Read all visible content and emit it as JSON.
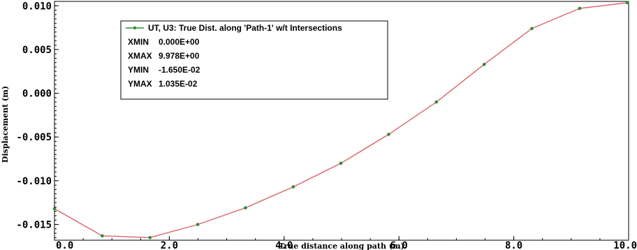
{
  "chart_data": {
    "type": "line",
    "title": "",
    "xlabel": "True distance along path (m)",
    "ylabel": "Displacement (m)",
    "xlim": [
      0,
      10
    ],
    "ylim": [
      -0.0168,
      0.0105
    ],
    "x_ticks": [
      0.0,
      2.0,
      4.0,
      6.0,
      8.0,
      10.0
    ],
    "x_tick_labels": [
      "0.0",
      "2.0",
      "4.0",
      "6.0",
      "8.0",
      "10.0"
    ],
    "y_ticks": [
      0.01,
      0.005,
      0.0,
      -0.005,
      -0.01,
      -0.015
    ],
    "y_tick_labels": [
      "0.010",
      "0.005",
      "0.000",
      "-0.005",
      "-0.010",
      "-0.015"
    ],
    "grid": false,
    "legend_position": "top-left",
    "series": [
      {
        "name": "UT, U3: True Dist. along 'Path-1' w/t Intersections",
        "line_color": "#d9646a",
        "marker_color": "#2e8b2e",
        "x": [
          0.0,
          0.832,
          1.663,
          2.495,
          3.326,
          4.158,
          4.989,
          5.821,
          6.652,
          7.484,
          8.315,
          9.147,
          9.978
        ],
        "y": [
          -0.0132,
          -0.0163,
          -0.0165,
          -0.015,
          -0.0131,
          -0.0107,
          -0.008,
          -0.0047,
          -0.001,
          0.0033,
          0.0074,
          0.0097,
          0.01035
        ]
      }
    ],
    "legend_stats": [
      {
        "label": "XMIN",
        "value": "0.000E+00"
      },
      {
        "label": "XMAX",
        "value": "9.978E+00"
      },
      {
        "label": "YMIN",
        "value": "-1.650E-02"
      },
      {
        "label": "YMAX",
        "value": "1.035E-02"
      }
    ]
  }
}
